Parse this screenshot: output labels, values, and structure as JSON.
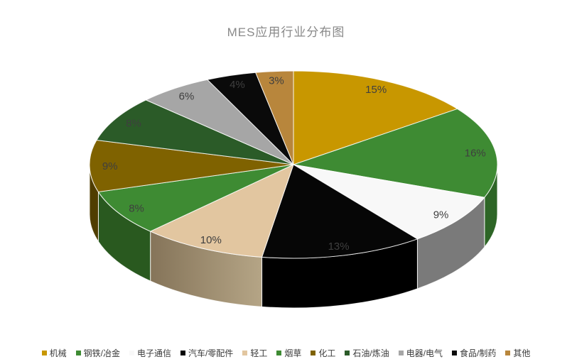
{
  "chart_data": {
    "type": "pie",
    "projection": "3d",
    "title": "MES应用行业分布图",
    "title_color": "#898989",
    "background_color": "#FFFFFF",
    "legend_position": "bottom",
    "start_angle_deg": 0,
    "direction": "clockwise",
    "label_color": "#3F3F3F",
    "slice_border_color": "rgba(255,255,255,0.85)",
    "series": [
      {
        "label": "机械",
        "value": 15,
        "data_label": "15%",
        "color": "#C89700",
        "side_color": "#8F6B00"
      },
      {
        "label": "钢铁/冶金",
        "value": 16,
        "data_label": "16%",
        "color": "#3E8B33",
        "side_color": "#2D6526"
      },
      {
        "label": "电子通信",
        "value": 9,
        "data_label": "9%",
        "color": "#F8F8F8",
        "side_color": "#7A7A7A"
      },
      {
        "label": "汽车/零配件",
        "value": 13,
        "data_label": "13%",
        "color": "#060606",
        "side_color": "#000000"
      },
      {
        "label": "轻工",
        "value": 10,
        "data_label": "10%",
        "color": "#E2C6A0",
        "side_color": "#9A8A6A",
        "side_gradient": [
          "#857459",
          "#B5A586"
        ]
      },
      {
        "label": "烟草",
        "value": 8,
        "data_label": "8%",
        "color": "#3E8B33",
        "side_color": "#29591F"
      },
      {
        "label": "化工",
        "value": 9,
        "data_label": "9%",
        "color": "#7F6200",
        "side_color": "#4F3D00"
      },
      {
        "label": "石油/炼油",
        "value": 8,
        "data_label": "8%",
        "color": "#2B5B28",
        "side_color": "#1B3A19"
      },
      {
        "label": "电器/电气",
        "value": 6,
        "data_label": "6%",
        "color": "#A6A6A6",
        "side_color": "#757575"
      },
      {
        "label": "食品/制药",
        "value": 4,
        "data_label": "4%",
        "color": "#0A0A0A",
        "side_color": "#000000"
      },
      {
        "label": "其他",
        "value": 3,
        "data_label": "3%",
        "color": "#B8863C",
        "side_color": "#7D5A26"
      }
    ]
  }
}
